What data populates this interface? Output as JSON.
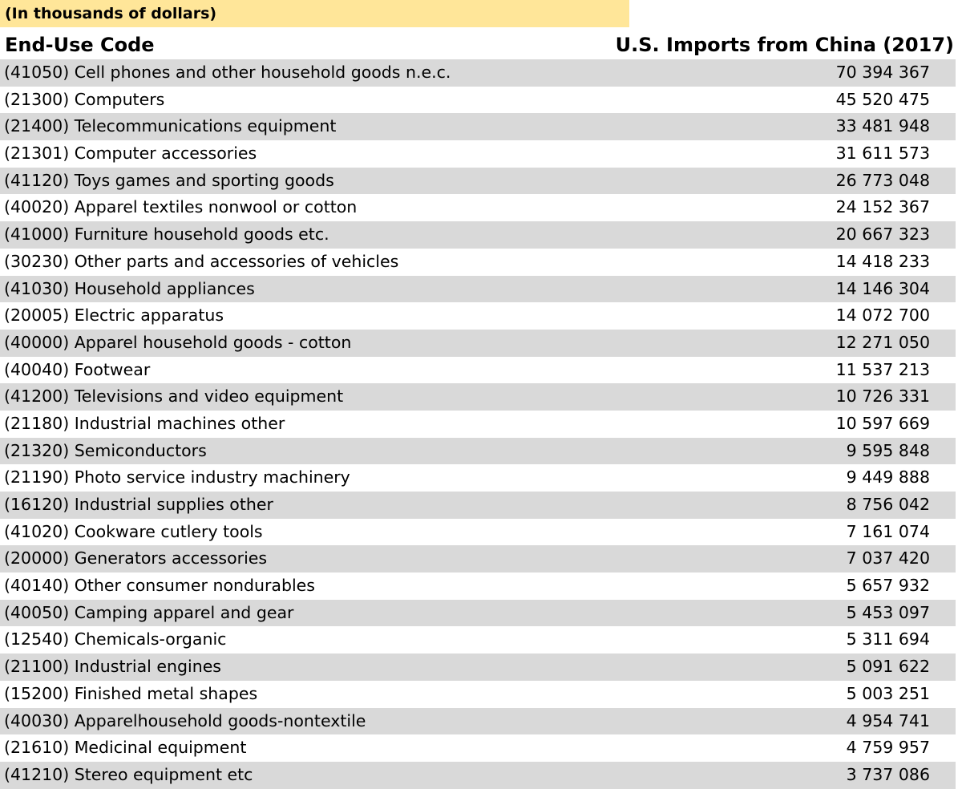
{
  "note": "(In thousands of dollars)",
  "headers": {
    "code": "End-Use Code",
    "value": "U.S. Imports from China (2017)"
  },
  "colors": {
    "note_background": "#FFE699",
    "shaded_row": "#D9D9D9"
  },
  "rows": [
    {
      "code": "(41050) Cell phones and other household goods n.e.c.",
      "value": "70 394 367"
    },
    {
      "code": "(21300) Computers",
      "value": "45 520 475"
    },
    {
      "code": "(21400) Telecommunications equipment",
      "value": "33 481 948"
    },
    {
      "code": "(21301) Computer accessories",
      "value": "31 611 573"
    },
    {
      "code": "(41120) Toys games and sporting goods",
      "value": "26 773 048"
    },
    {
      "code": "(40020) Apparel textiles nonwool or cotton",
      "value": "24 152 367"
    },
    {
      "code": "(41000) Furniture household goods etc.",
      "value": "20 667 323"
    },
    {
      "code": "(30230) Other parts and accessories of vehicles",
      "value": "14 418 233"
    },
    {
      "code": "(41030) Household appliances",
      "value": "14 146 304"
    },
    {
      "code": "(20005) Electric apparatus",
      "value": "14 072 700"
    },
    {
      "code": "(40000) Apparel household goods - cotton",
      "value": "12 271 050"
    },
    {
      "code": "(40040) Footwear",
      "value": "11 537 213"
    },
    {
      "code": "(41200) Televisions and video equipment",
      "value": "10 726 331"
    },
    {
      "code": "(21180) Industrial machines other",
      "value": "10 597 669"
    },
    {
      "code": "(21320) Semiconductors",
      "value": "9 595 848"
    },
    {
      "code": "(21190) Photo service industry machinery",
      "value": "9 449 888"
    },
    {
      "code": "(16120) Industrial supplies other",
      "value": "8 756 042"
    },
    {
      "code": "(41020) Cookware cutlery tools",
      "value": "7 161 074"
    },
    {
      "code": "(20000) Generators accessories",
      "value": "7 037 420"
    },
    {
      "code": "(40140) Other consumer nondurables",
      "value": "5 657 932"
    },
    {
      "code": "(40050) Camping apparel and gear",
      "value": "5 453 097"
    },
    {
      "code": "(12540) Chemicals-organic",
      "value": "5 311 694"
    },
    {
      "code": "(21100) Industrial engines",
      "value": "5 091 622"
    },
    {
      "code": "(15200) Finished metal shapes",
      "value": "5 003 251"
    },
    {
      "code": "(40030) Apparelhousehold goods-nontextile",
      "value": "4 954 741"
    },
    {
      "code": "(21610) Medicinal equipment",
      "value": "4 759 957"
    },
    {
      "code": "(41210) Stereo equipment etc",
      "value": "3 737 086"
    }
  ]
}
